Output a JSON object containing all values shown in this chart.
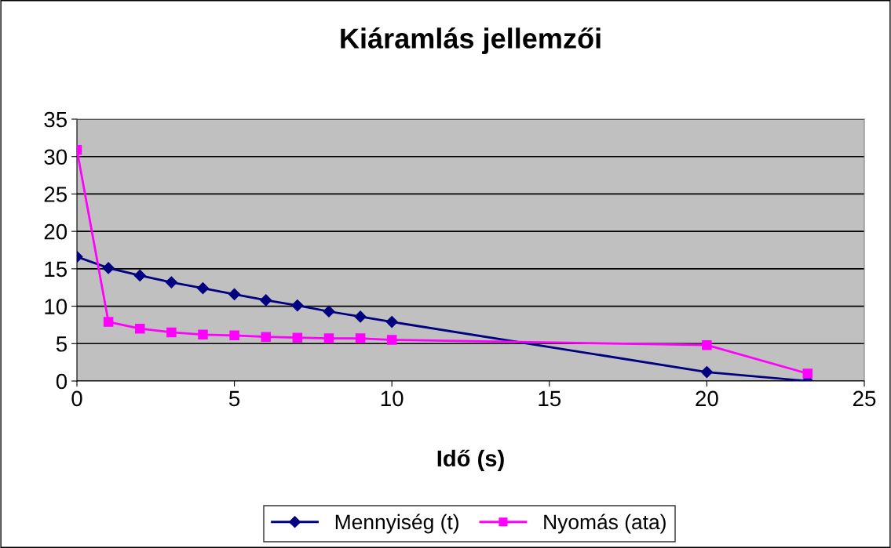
{
  "chart_data": {
    "type": "line",
    "title": "Kiáramlás jellemzői",
    "xlabel": "Idő (s)",
    "x": [
      0,
      1,
      2,
      3,
      4,
      5,
      6,
      7,
      8,
      9,
      10,
      20,
      23.2
    ],
    "series": [
      {
        "name": "Mennyiség (t)",
        "color": "#000080",
        "marker": "diamond",
        "values": [
          16.6,
          15.1,
          14.1,
          13.2,
          12.4,
          11.6,
          10.8,
          10.1,
          9.3,
          8.6,
          7.9,
          1.2,
          0
        ]
      },
      {
        "name": "Nyomás (ata)",
        "color": "#ff00ff",
        "marker": "square",
        "values": [
          30.9,
          7.9,
          7.0,
          6.5,
          6.2,
          6.1,
          5.9,
          5.8,
          5.7,
          5.7,
          5.5,
          4.8,
          1.0
        ]
      }
    ],
    "xlim": [
      0,
      25
    ],
    "xticks": [
      0,
      5,
      10,
      15,
      20,
      25
    ],
    "ylim": [
      0,
      35
    ],
    "yticks": [
      0,
      5,
      10,
      15,
      20,
      25,
      30,
      35
    ],
    "grid": "y",
    "legend": "bottom",
    "line_style": "solid"
  }
}
